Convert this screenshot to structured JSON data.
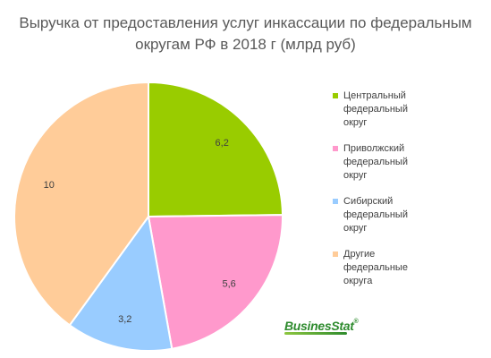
{
  "chart_data": {
    "type": "pie",
    "title_lines": [
      "Выручка от предоставления услуг инкассации по федеральным",
      "округам РФ в 2018 г (млрд руб)"
    ],
    "categories": [
      "Центральный федеральный округ",
      "Приволжский федеральный округ",
      "Сибирский федеральный округ",
      "Другие федеральные округа"
    ],
    "values": [
      6.2,
      5.6,
      3.2,
      10
    ],
    "data_labels": [
      "6,2",
      "5,6",
      "3,2",
      "10"
    ],
    "colors": [
      "#99cc00",
      "#ff99cc",
      "#99ccff",
      "#ffcc99"
    ],
    "start_angle_deg": 0,
    "direction": "clockwise",
    "legend_position": "right"
  },
  "legend_items": [
    {
      "label": "Центральный федеральный округ",
      "color": "#99cc00"
    },
    {
      "label": "Приволжский федеральный округ",
      "color": "#ff99cc"
    },
    {
      "label": "Сибирский федеральный округ",
      "color": "#99ccff"
    },
    {
      "label": "Другие федеральные округа",
      "color": "#ffcc99"
    }
  ],
  "logo": {
    "text": "BusinesStat",
    "reg": "®",
    "icon": "swoosh-logo"
  }
}
